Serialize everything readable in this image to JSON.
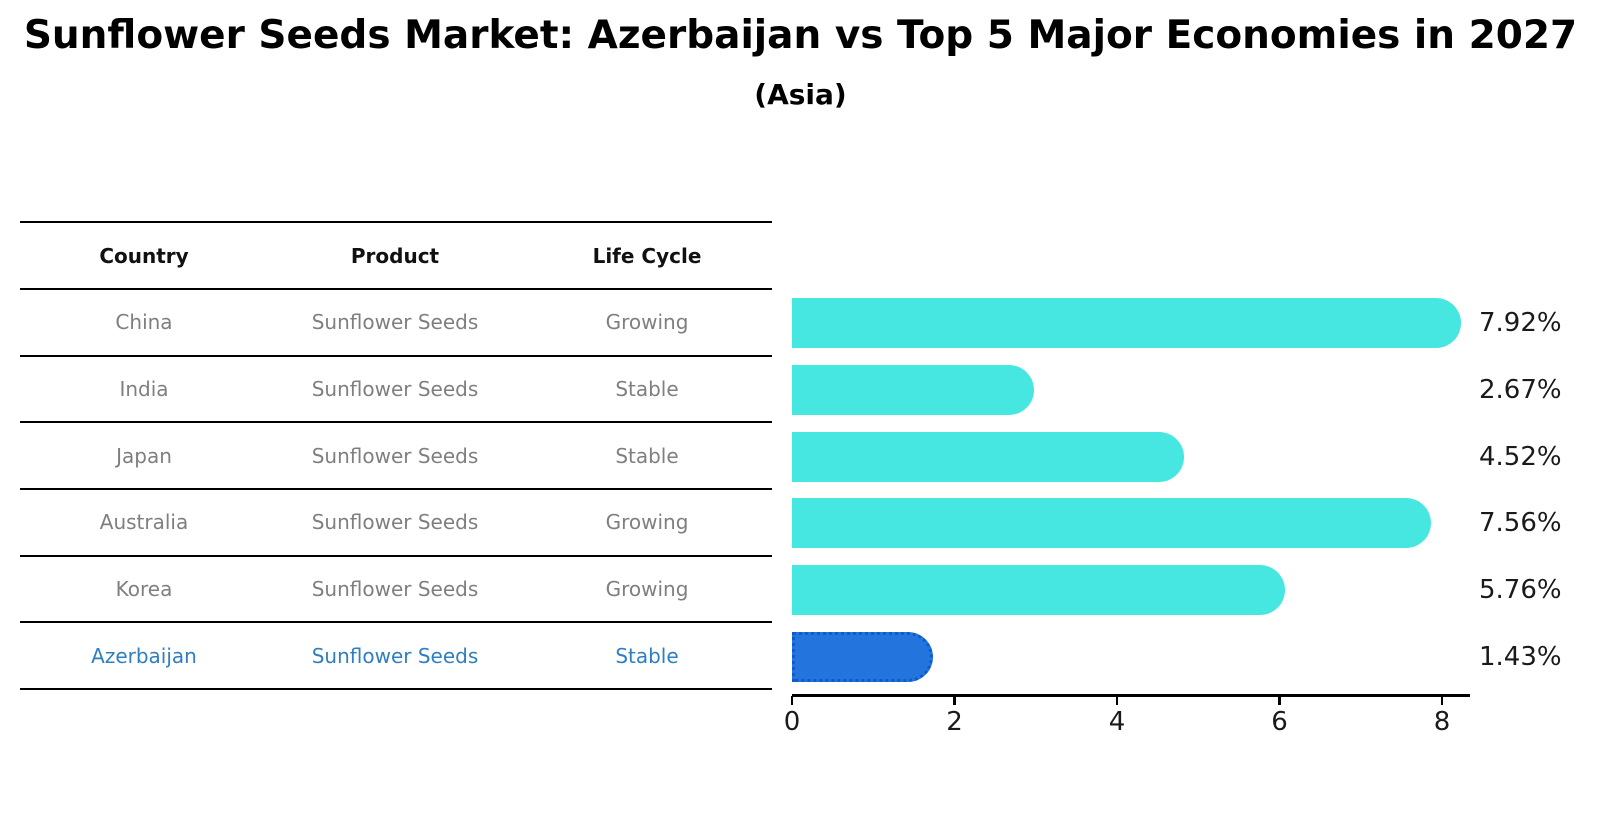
{
  "title": "Sunflower Seeds Market: Azerbaijan vs Top 5 Major Economies in 2027",
  "subtitle": "(Asia)",
  "table": {
    "headers": [
      "Country",
      "Product",
      "Life Cycle"
    ],
    "rows": [
      {
        "country": "China",
        "product": "Sunflower Seeds",
        "life_cycle": "Growing",
        "highlight": false
      },
      {
        "country": "India",
        "product": "Sunflower Seeds",
        "life_cycle": "Stable",
        "highlight": false
      },
      {
        "country": "Japan",
        "product": "Sunflower Seeds",
        "life_cycle": "Stable",
        "highlight": false
      },
      {
        "country": "Australia",
        "product": "Sunflower Seeds",
        "life_cycle": "Growing",
        "highlight": false
      },
      {
        "country": "Korea",
        "product": "Sunflower Seeds",
        "life_cycle": "Growing",
        "highlight": false
      },
      {
        "country": "Azerbaijan",
        "product": "Sunflower Seeds",
        "life_cycle": "Stable",
        "highlight": true
      }
    ]
  },
  "chart_data": {
    "type": "bar",
    "orientation": "horizontal",
    "title": "Sunflower Seeds Market: Azerbaijan vs Top 5 Major Economies in 2027 (Asia)",
    "categories": [
      "China",
      "India",
      "Japan",
      "Australia",
      "Korea",
      "Azerbaijan"
    ],
    "values": [
      7.92,
      2.67,
      4.52,
      7.56,
      5.76,
      1.43
    ],
    "value_labels": [
      "7.92%",
      "2.67%",
      "4.52%",
      "7.56%",
      "5.76%",
      "1.43%"
    ],
    "highlight_index": 5,
    "x_ticks": [
      "0",
      "2",
      "4",
      "6",
      "8"
    ],
    "x_tick_values": [
      0,
      2,
      4,
      6,
      8
    ],
    "xlim": [
      0,
      8
    ],
    "grid": false,
    "legend": "none",
    "bar_color": "#46e6e1",
    "highlight_bar_color": "#2374dc",
    "highlight_text_color": "#2e7fc1",
    "label_color": "#1a1a1a",
    "row_text_color": "#7f7f7f"
  }
}
